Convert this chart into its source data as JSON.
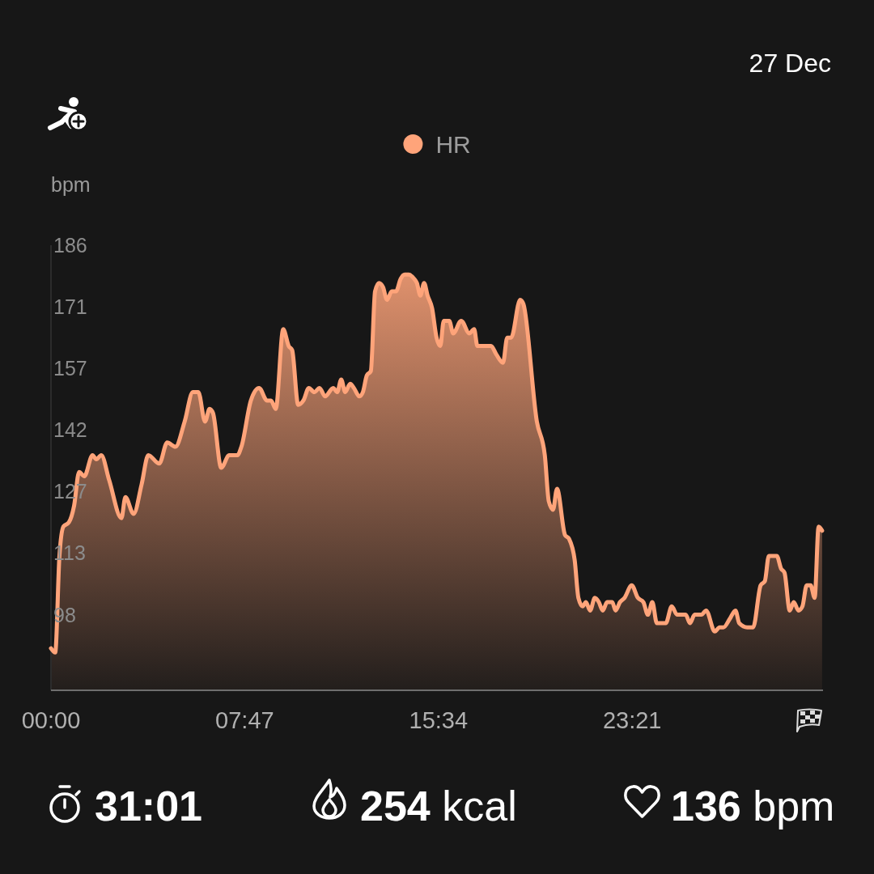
{
  "chart_data": {
    "type": "area",
    "ylabel": "bpm",
    "legend": "top",
    "xlim": [
      0,
      31.0167
    ],
    "ylim": [
      80,
      186
    ],
    "xticks": [
      {
        "value": 0,
        "label": "00:00"
      },
      {
        "value": 7.7833,
        "label": "07:47"
      },
      {
        "value": 15.5667,
        "label": "15:34"
      },
      {
        "value": 23.35,
        "label": "23:21"
      }
    ],
    "yticks": [
      98,
      {
        "value": 112.67,
        "label": "113"
      },
      {
        "value": 127.33,
        "label": "127"
      },
      142,
      {
        "value": 156.67,
        "label": "157"
      },
      {
        "value": 171.33,
        "label": "171"
      },
      186
    ],
    "series": [
      {
        "name": "HR",
        "color": "#ffa47a",
        "x": [
          0,
          0.17,
          0.34,
          0.5,
          0.72,
          0.93,
          1.13,
          1.34,
          1.67,
          1.82,
          2.02,
          2.34,
          2.83,
          2.99,
          3.32,
          3.64,
          3.91,
          4.35,
          4.67,
          5.0,
          5.37,
          5.7,
          5.92,
          6.19,
          6.37,
          6.51,
          6.84,
          7.16,
          7.49,
          7.65,
          8.03,
          8.36,
          8.68,
          8.84,
          9.03,
          9.33,
          9.55,
          9.69,
          9.93,
          10.14,
          10.36,
          10.58,
          10.79,
          11.01,
          11.34,
          11.5,
          11.66,
          11.82,
          12.02,
          12.17,
          12.39,
          12.53,
          12.69,
          12.85,
          13.02,
          13.18,
          13.34,
          13.5,
          13.69,
          13.86,
          14.05,
          14.21,
          14.37,
          14.59,
          14.7,
          14.84,
          14.99,
          15.13,
          15.31,
          15.49,
          15.64,
          15.78,
          16.0,
          16.16,
          16.48,
          16.81,
          17.0,
          17.13,
          17.68,
          17.89,
          18.16,
          18.33,
          18.49,
          18.85,
          18.98,
          19.52,
          19.84,
          20.0,
          20.17,
          20.33,
          20.65,
          20.82,
          21.04,
          21.19,
          21.36,
          21.49,
          21.66,
          21.85,
          22.01,
          22.17,
          22.34,
          22.55,
          22.68,
          22.86,
          23.04,
          23.33,
          23.58,
          23.8,
          23.98,
          24.16,
          24.34,
          24.7,
          24.94,
          25.15,
          25.5,
          25.67,
          25.86,
          26.13,
          26.32,
          26.67,
          26.86,
          27.02,
          27.27,
          27.5,
          27.65,
          27.97,
          28.21,
          28.51,
          28.68,
          28.84,
          29.0,
          29.16,
          29.33,
          29.47,
          29.68,
          29.84,
          30.03,
          30.19,
          30.36,
          30.52,
          30.68,
          30.84,
          30.98
        ],
        "values": [
          90,
          89,
          112,
          119,
          120,
          124,
          132,
          131,
          136,
          135,
          136,
          130,
          121,
          126,
          122,
          129,
          136,
          134,
          139,
          138,
          144,
          151,
          151,
          144,
          147,
          146,
          133,
          136,
          136,
          138,
          149,
          152,
          149,
          149,
          147,
          166,
          162,
          161,
          148,
          149,
          152,
          151,
          152,
          150,
          152,
          151,
          154,
          151,
          153,
          152,
          150,
          151,
          155,
          156,
          175,
          177,
          176,
          173,
          175,
          175,
          178,
          179,
          179,
          178,
          177,
          174,
          177,
          174,
          171,
          164,
          162,
          168,
          168,
          165,
          168,
          165,
          166,
          162,
          162,
          160,
          158,
          164,
          164,
          173,
          172,
          144,
          136,
          125,
          123,
          128,
          117,
          116,
          111,
          102,
          100,
          101,
          99,
          102,
          101,
          99,
          101,
          101,
          99,
          101,
          102,
          105,
          102,
          101,
          98,
          101,
          96,
          96,
          100,
          98,
          98,
          96,
          98,
          98,
          99,
          94,
          95,
          95,
          97,
          99,
          96,
          95,
          95,
          105,
          106,
          112,
          112,
          112,
          109,
          108,
          99,
          101,
          99,
          100,
          105,
          105,
          102,
          119,
          118
        ]
      }
    ],
    "annotations": [
      "27 Dec",
      "31:01",
      "254 kcal",
      "136 bpm"
    ]
  }
}
